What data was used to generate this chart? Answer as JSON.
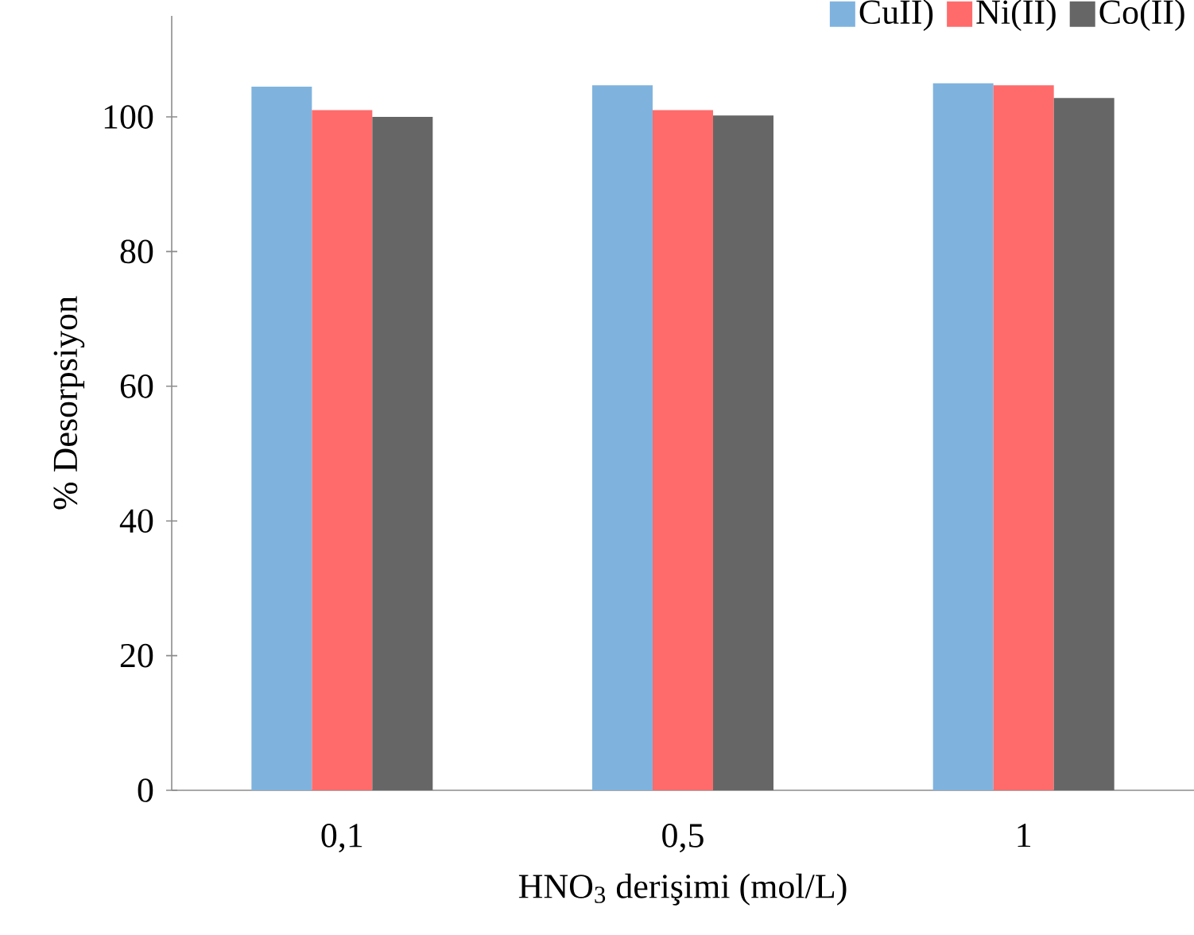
{
  "chart_data": {
    "type": "bar",
    "xlabel": "HNO$_{3}$ derişimi (mol/L)",
    "ylabel": "% Desorpsiyon",
    "categories": [
      "0,1",
      "0,5",
      "1"
    ],
    "series": [
      {
        "name": "CuII)",
        "color": "#7fb3de",
        "values": [
          104.5,
          104.7,
          105
        ]
      },
      {
        "name": "Ni(II)",
        "color": "#ff6b6b",
        "values": [
          101,
          101,
          104.7
        ]
      },
      {
        "name": "Co(II)",
        "color": "#666666",
        "values": [
          100,
          100.2,
          102.8
        ]
      }
    ],
    "ylim": [
      0,
      115
    ],
    "yticks": [
      0,
      20,
      40,
      60,
      80,
      100
    ],
    "grid": false,
    "legend": "top right"
  }
}
